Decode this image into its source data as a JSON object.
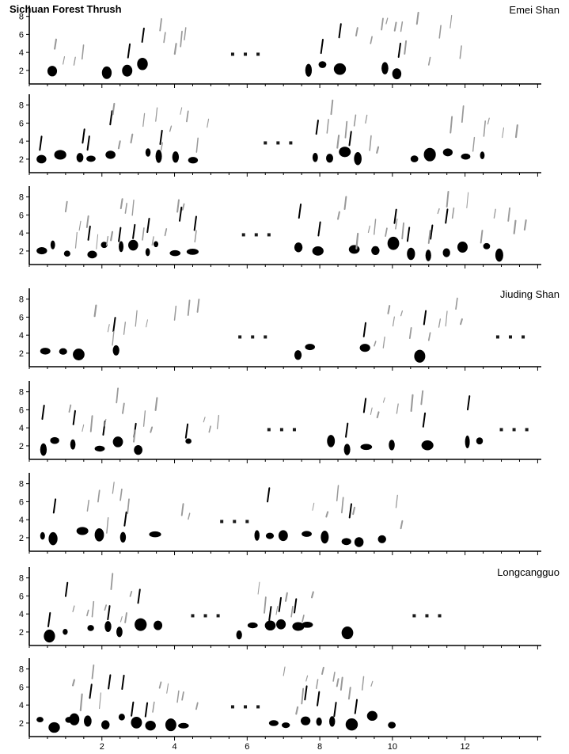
{
  "title": "Sichuan Forest Thrush",
  "sites": [
    {
      "name": "Emei Shan",
      "first_panel": 0
    },
    {
      "name": "Jiuding Shan",
      "first_panel": 3
    },
    {
      "name": "Longcangguo",
      "first_panel": 6
    }
  ],
  "chart_data": {
    "type": "spectrogram",
    "title": "Sichuan Forest Thrush",
    "xlabel": "",
    "ylabel": "",
    "xlim": [
      0,
      14.1
    ],
    "ylim": [
      0.5,
      9.2
    ],
    "x_ticks": [
      2,
      4,
      6,
      8,
      10,
      12
    ],
    "x_minor_step": 0.5,
    "y_ticks": [
      2,
      4,
      6,
      8
    ],
    "grid": false,
    "colors": {
      "note": "#000000",
      "faint": "#9a9a9a",
      "gap_dot": "#1a1a1a"
    },
    "panels": [
      {
        "site": "Emei Shan",
        "strong": [
          [
            0.5,
            1.0
          ],
          [
            2.0,
            3.2
          ],
          [
            7.6,
            9.0
          ],
          [
            9.7,
            10.4
          ]
        ],
        "faint": [
          [
            0.7,
            1.5
          ],
          [
            3.6,
            4.6
          ],
          [
            9.0,
            10.7
          ],
          [
            11.0,
            11.9
          ]
        ],
        "gaps": [
          5.6
        ]
      },
      {
        "site": "Emei Shan",
        "strong": [
          [
            0.2,
            2.3
          ],
          [
            3.2,
            4.5
          ],
          [
            7.8,
            9.0
          ],
          [
            10.5,
            12.7
          ]
        ],
        "faint": [
          [
            2.3,
            5.0
          ],
          [
            8.2,
            9.9
          ],
          [
            11.6,
            13.6
          ]
        ],
        "gaps": [
          6.5
        ]
      },
      {
        "site": "Emei Shan",
        "strong": [
          [
            0.2,
            1.2
          ],
          [
            1.6,
            2.8
          ],
          [
            3.2,
            4.4
          ],
          [
            7.3,
            8.3
          ],
          [
            8.8,
            9.9
          ],
          [
            10.4,
            11.8
          ],
          [
            12.5,
            13.2
          ]
        ],
        "faint": [
          [
            1.0,
            4.8
          ],
          [
            8.5,
            10.4
          ],
          [
            11.0,
            13.8
          ]
        ],
        "gaps": [
          5.9
        ]
      },
      {
        "site": "Jiuding Shan",
        "strong": [
          [
            0.3,
            0.9
          ],
          [
            1.2,
            1.6
          ],
          [
            2.3,
            2.6
          ],
          [
            7.3,
            7.9
          ],
          [
            9.1,
            9.5
          ],
          [
            10.6,
            10.8
          ]
        ],
        "faint": [
          [
            1.8,
            3.6
          ],
          [
            4.0,
            4.9
          ],
          [
            9.5,
            10.7
          ],
          [
            11.0,
            11.9
          ]
        ],
        "gaps": [
          5.8,
          12.9
        ]
      },
      {
        "site": "Jiuding Shan",
        "strong": [
          [
            0.3,
            1.5
          ],
          [
            1.8,
            3.3
          ],
          [
            4.3,
            4.5
          ],
          [
            8.2,
            9.4
          ],
          [
            9.9,
            10.2
          ],
          [
            10.8,
            11.0
          ],
          [
            12.0,
            12.5
          ]
        ],
        "faint": [
          [
            1.1,
            3.6
          ],
          [
            4.8,
            5.3
          ],
          [
            9.4,
            10.9
          ]
        ],
        "gaps": [
          6.6,
          13.0
        ]
      },
      {
        "site": "Jiuding Shan",
        "strong": [
          [
            0.3,
            1.0
          ],
          [
            1.3,
            1.9
          ],
          [
            2.5,
            2.8
          ],
          [
            3.3,
            3.6
          ],
          [
            6.2,
            7.2
          ],
          [
            7.5,
            8.2
          ],
          [
            8.6,
            9.0
          ],
          [
            9.6,
            9.8
          ]
        ],
        "faint": [
          [
            1.6,
            3.0
          ],
          [
            4.2,
            4.5
          ],
          [
            7.8,
            9.0
          ],
          [
            10.1,
            10.3
          ]
        ],
        "gaps": [
          5.3
        ]
      },
      {
        "site": "Longcangguo",
        "strong": [
          [
            0.4,
            1.2
          ],
          [
            1.6,
            2.6
          ],
          [
            2.9,
            3.6
          ],
          [
            5.7,
            6.5
          ],
          [
            6.8,
            7.3
          ],
          [
            7.5,
            8.1
          ],
          [
            8.6,
            8.8
          ]
        ],
        "faint": [
          [
            1.2,
            2.9
          ],
          [
            6.3,
            7.9
          ]
        ],
        "gaps": [
          4.5,
          10.6
        ]
      },
      {
        "site": "Longcangguo",
        "strong": [
          [
            0.2,
            1.0
          ],
          [
            1.1,
            2.5
          ],
          [
            2.8,
            3.9
          ],
          [
            4.1,
            4.4
          ],
          [
            6.6,
            7.5
          ],
          [
            7.9,
            9.0
          ],
          [
            9.3,
            10.3
          ]
        ],
        "faint": [
          [
            1.2,
            2.0
          ],
          [
            3.4,
            4.6
          ],
          [
            7.0,
            9.5
          ]
        ],
        "gaps": [
          5.6
        ]
      }
    ]
  }
}
